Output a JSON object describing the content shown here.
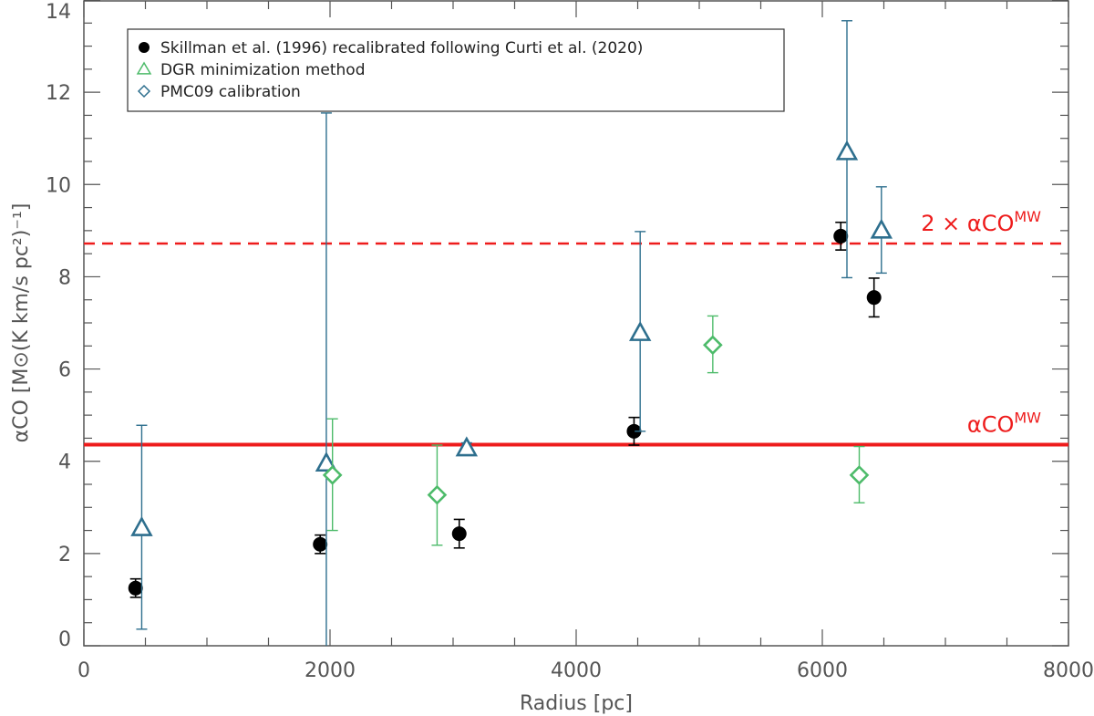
{
  "chart_data": {
    "type": "scatter",
    "title": "",
    "xlabel": "Radius [pc]",
    "ylabel": "αCO [M⊙(K km/s pc²)⁻¹]",
    "xlim": [
      0,
      8000
    ],
    "ylim": [
      0,
      14
    ],
    "xticks": [
      0,
      2000,
      4000,
      6000,
      8000
    ],
    "yticks": [
      0,
      2,
      4,
      6,
      8,
      10,
      12,
      14
    ],
    "x_minor_step": 500,
    "y_minor_step": 0.5,
    "series": [
      {
        "name": "Skillman et al. (1996) recalibrated following Curti et al. (2020)",
        "marker": "filled-circle",
        "color": "#000000",
        "points": [
          {
            "x": 420,
            "y": 1.25,
            "ylo": 1.05,
            "yhi": 1.45
          },
          {
            "x": 1920,
            "y": 2.2,
            "ylo": 2.0,
            "yhi": 2.4
          },
          {
            "x": 3050,
            "y": 2.43,
            "ylo": 2.12,
            "yhi": 2.74
          },
          {
            "x": 4470,
            "y": 4.65,
            "ylo": 4.35,
            "yhi": 4.95
          },
          {
            "x": 6150,
            "y": 8.88,
            "ylo": 8.58,
            "yhi": 9.18
          },
          {
            "x": 6420,
            "y": 7.55,
            "ylo": 7.13,
            "yhi": 7.97
          }
        ]
      },
      {
        "name": "DGR minimization method",
        "marker": "open-triangle",
        "color": "#2e6f8e",
        "points": [
          {
            "x": 470,
            "y": 2.55,
            "ylo": 0.36,
            "yhi": 4.78
          },
          {
            "x": 1970,
            "y": 3.95,
            "ylo": 0.0,
            "yhi": 11.55
          },
          {
            "x": 3110,
            "y": 4.28,
            "ylo": 4.15,
            "yhi": 4.4
          },
          {
            "x": 4520,
            "y": 6.78,
            "ylo": 4.65,
            "yhi": 8.98
          },
          {
            "x": 6200,
            "y": 10.7,
            "ylo": 7.98,
            "yhi": 13.55
          },
          {
            "x": 6480,
            "y": 9.0,
            "ylo": 8.08,
            "yhi": 9.95
          }
        ]
      },
      {
        "name": "PMC09 calibration",
        "marker": "open-diamond",
        "color": "#4dbb6a",
        "points": [
          {
            "x": 2020,
            "y": 3.7,
            "ylo": 2.5,
            "yhi": 4.92
          },
          {
            "x": 2870,
            "y": 3.27,
            "ylo": 2.18,
            "yhi": 4.35
          },
          {
            "x": 5110,
            "y": 6.52,
            "ylo": 5.92,
            "yhi": 7.15
          },
          {
            "x": 6300,
            "y": 3.7,
            "ylo": 3.1,
            "yhi": 4.32
          }
        ]
      }
    ],
    "reference_lines": [
      {
        "y": 4.36,
        "style": "solid",
        "color": "#ee1c1c",
        "label": "αCO",
        "superscript": "MW",
        "prefix": ""
      },
      {
        "y": 8.72,
        "style": "dashed",
        "color": "#ee1c1c",
        "label": "αCO",
        "superscript": "MW",
        "prefix": "2 × "
      }
    ],
    "legend": {
      "placement": "top-left",
      "entries": [
        "Skillman et al. (1996) recalibrated following Curti et al. (2020)",
        "DGR minimization method",
        "PMC09 calibration"
      ]
    }
  }
}
